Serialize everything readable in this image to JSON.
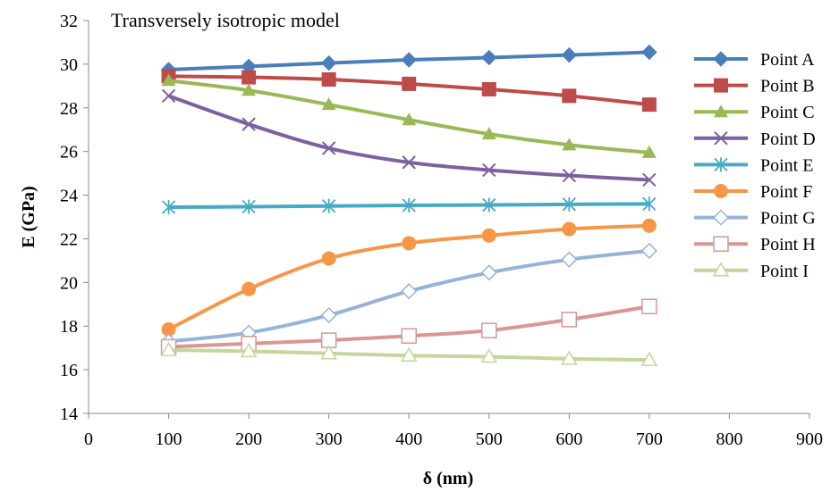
{
  "chart_data": {
    "type": "line",
    "title": "Transversely isotropic model",
    "xlabel": "δ (nm)",
    "ylabel": "E (GPa)",
    "xlim": [
      0,
      900
    ],
    "ylim": [
      14,
      32
    ],
    "x_ticks": [
      0,
      100,
      200,
      300,
      400,
      500,
      600,
      700,
      800,
      900
    ],
    "y_ticks": [
      14,
      16,
      18,
      20,
      22,
      24,
      26,
      28,
      30,
      32
    ],
    "grid": false,
    "legend_position": "right",
    "x": [
      100,
      200,
      300,
      400,
      500,
      600,
      700
    ],
    "series": [
      {
        "name": "Point A",
        "color": "#4a7ebb",
        "marker": "diamond-filled",
        "values": [
          29.75,
          29.9,
          30.05,
          30.2,
          30.3,
          30.42,
          30.55
        ]
      },
      {
        "name": "Point B",
        "color": "#be4b48",
        "marker": "square-filled",
        "values": [
          29.45,
          29.4,
          29.3,
          29.1,
          28.85,
          28.55,
          28.15
        ]
      },
      {
        "name": "Point C",
        "color": "#98b954",
        "marker": "triangle-filled",
        "values": [
          29.25,
          28.8,
          28.15,
          27.45,
          26.8,
          26.3,
          25.95
        ]
      },
      {
        "name": "Point D",
        "color": "#7d60a0",
        "marker": "x",
        "values": [
          28.55,
          27.25,
          26.15,
          25.5,
          25.15,
          24.9,
          24.7
        ]
      },
      {
        "name": "Point E",
        "color": "#46aac5",
        "marker": "asterisk",
        "values": [
          23.45,
          23.47,
          23.5,
          23.53,
          23.55,
          23.58,
          23.6
        ]
      },
      {
        "name": "Point F",
        "color": "#f79646",
        "marker": "circle-filled",
        "values": [
          17.85,
          19.7,
          21.1,
          21.8,
          22.15,
          22.45,
          22.6
        ]
      },
      {
        "name": "Point G",
        "color": "#95b3d7",
        "marker": "diamond-open",
        "values": [
          17.3,
          17.7,
          18.5,
          19.6,
          20.45,
          21.05,
          21.45
        ]
      },
      {
        "name": "Point H",
        "color": "#d99694",
        "marker": "square-open",
        "values": [
          17.05,
          17.2,
          17.35,
          17.55,
          17.8,
          18.3,
          18.9
        ]
      },
      {
        "name": "Point I",
        "color": "#c3d69b",
        "marker": "triangle-open",
        "values": [
          16.9,
          16.85,
          16.75,
          16.65,
          16.6,
          16.5,
          16.45
        ]
      }
    ]
  }
}
